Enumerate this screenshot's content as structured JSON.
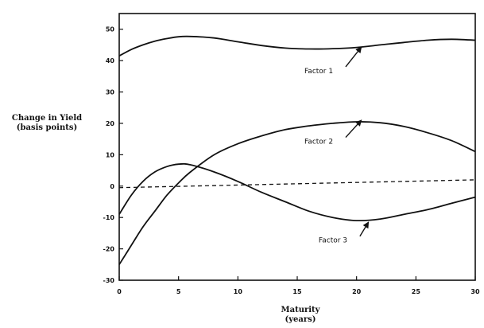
{
  "chart_data": {
    "type": "line",
    "ylabel": "Change in Yield",
    "ylabel_sub": "(basis points)",
    "xlabel": "Maturity",
    "xlabel_sub": "(years)",
    "xlim": [
      0,
      30
    ],
    "ylim": [
      -30,
      55
    ],
    "xticks": [
      0,
      5,
      10,
      15,
      20,
      25,
      30
    ],
    "yticks": [
      50,
      40,
      30,
      20,
      10,
      0,
      -10,
      -20,
      -30
    ],
    "grid": false,
    "series": [
      {
        "name": "Factor 1",
        "x": [
          0,
          1,
          2,
          3,
          4,
          5,
          6,
          8,
          10,
          12,
          14,
          16,
          18,
          20,
          22,
          24,
          26,
          28,
          30
        ],
        "y": [
          41.5,
          43.5,
          45,
          46.2,
          47,
          47.6,
          47.7,
          47.2,
          46,
          44.8,
          44,
          43.7,
          43.8,
          44.2,
          45,
          45.8,
          46.5,
          46.8,
          46.5
        ]
      },
      {
        "name": "Factor 2",
        "x": [
          0,
          1,
          2,
          3,
          4,
          5,
          6,
          8,
          10,
          12,
          14,
          16,
          18,
          20,
          22,
          24,
          26,
          28,
          30
        ],
        "y": [
          -25,
          -19,
          -13,
          -8,
          -3,
          1,
          4.5,
          10,
          13.5,
          16,
          18,
          19.2,
          20,
          20.5,
          20.2,
          19,
          17,
          14.5,
          11
        ]
      },
      {
        "name": "Factor 3",
        "x": [
          0,
          1,
          2,
          3,
          4,
          5,
          6,
          8,
          10,
          12,
          14,
          16,
          18,
          20,
          22,
          24,
          26,
          28,
          30
        ],
        "y": [
          -9,
          -3,
          1.5,
          4.5,
          6.2,
          7,
          6.8,
          4.5,
          1.5,
          -2,
          -5,
          -8,
          -10,
          -11,
          -10.5,
          -9,
          -7.5,
          -5.5,
          -3.5
        ]
      }
    ],
    "reference_line": {
      "x": [
        0,
        30
      ],
      "y": [
        -0.5,
        2
      ],
      "style": "dashed"
    },
    "annotations": [
      {
        "text": "Factor 1",
        "series": 0,
        "label_x": 15.6,
        "label_y": 36,
        "arrow_to_x": 20.4,
        "arrow_to_y": 44.3
      },
      {
        "text": "Factor 2",
        "series": 1,
        "label_x": 15.6,
        "label_y": 13.5,
        "arrow_to_x": 20.4,
        "arrow_to_y": 21.0
      },
      {
        "text": "Factor 3",
        "series": 2,
        "label_x": 16.8,
        "label_y": -18,
        "arrow_to_x": 21.0,
        "arrow_to_y": -11.5
      }
    ]
  }
}
